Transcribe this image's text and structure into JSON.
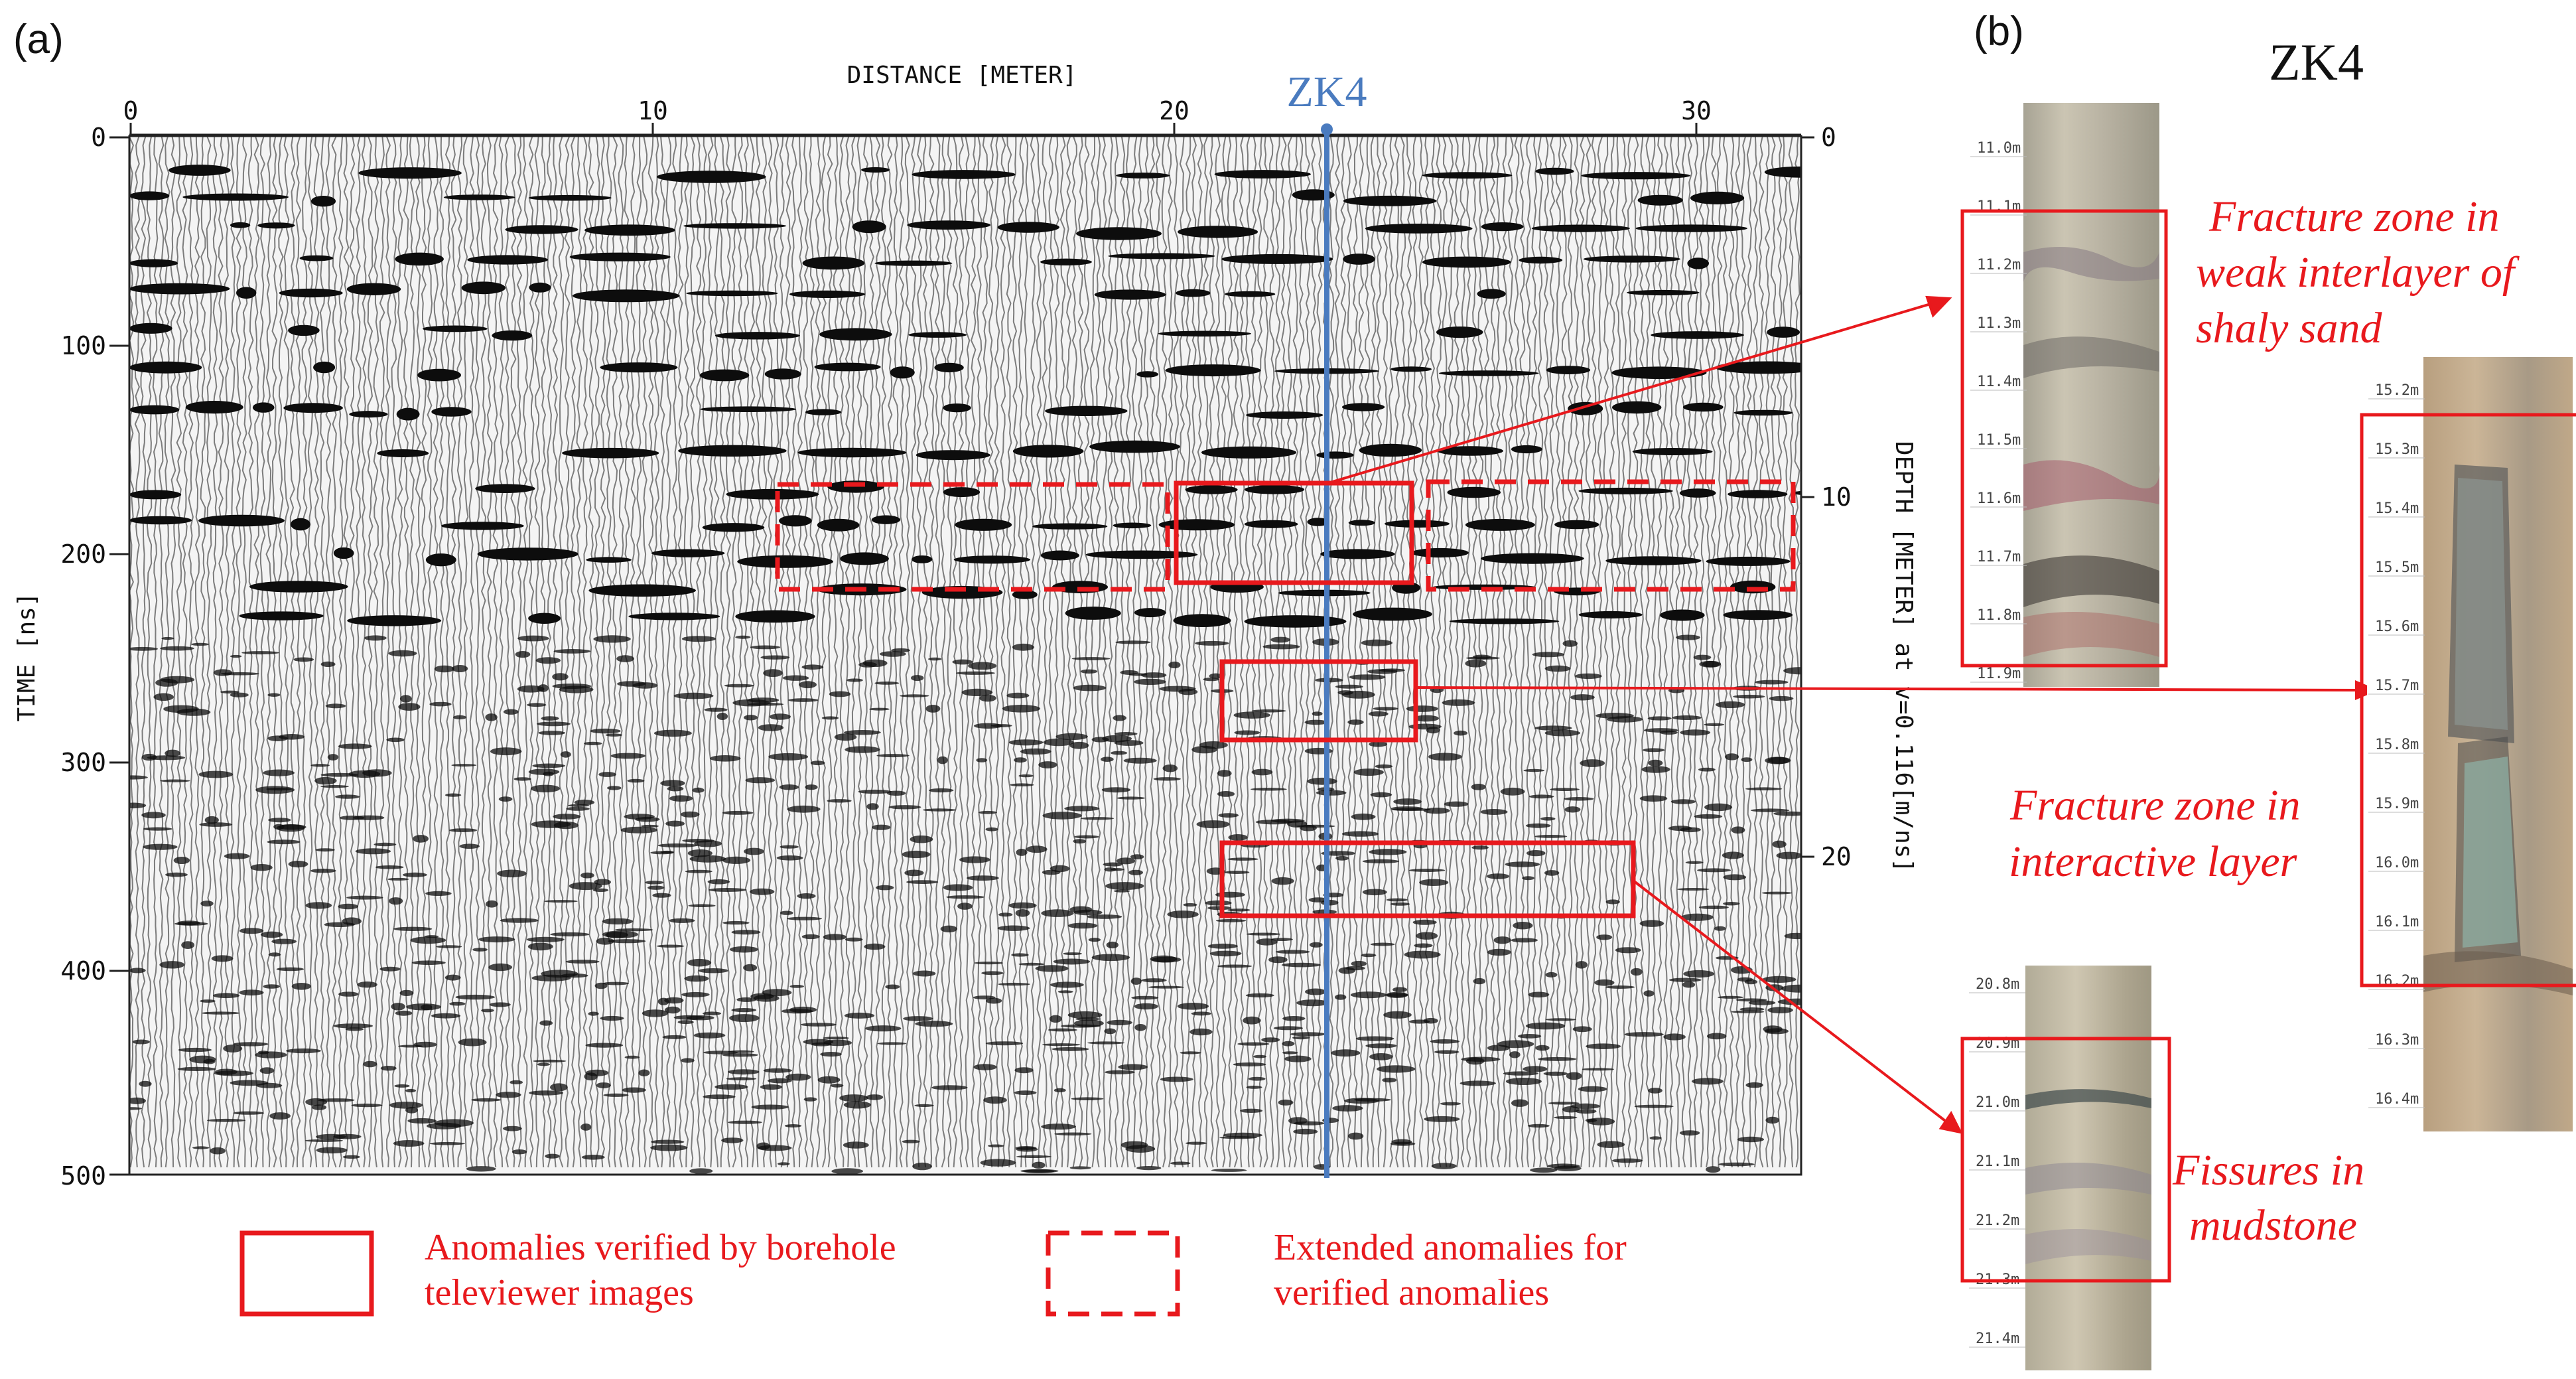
{
  "panel_a": {
    "label": "(a)",
    "x_axis": {
      "title": "DISTANCE [METER]",
      "ticks": [
        "0",
        "10",
        "20",
        "30"
      ],
      "range": [
        0,
        32
      ]
    },
    "y_axis": {
      "title": "TIME [ns]",
      "ticks": [
        "0",
        "100",
        "200",
        "300",
        "400",
        "500"
      ],
      "range": [
        0,
        500
      ]
    },
    "depth_axis": {
      "title": "DEPTH [METER] at v=0.116[m/ns]",
      "ticks": [
        "0",
        "10",
        "20"
      ],
      "velocity_m_per_ns": 0.116
    },
    "borehole_marker": {
      "label": "ZK4",
      "distance_m": 22.9,
      "color": "#4a7bbf"
    },
    "verified_anomalies": [
      {
        "name": "upper",
        "x_range_m": [
          20.1,
          24.5
        ],
        "time_range_ns": [
          168,
          215
        ]
      },
      {
        "name": "middle",
        "x_range_m": [
          21,
          24.7
        ],
        "time_range_ns": [
          252,
          290
        ]
      },
      {
        "name": "lower",
        "x_range_m": [
          21,
          28.9
        ],
        "time_range_ns": [
          340,
          375
        ]
      }
    ],
    "extended_anomalies": [
      {
        "name": "left",
        "x_range_m": [
          12.5,
          19.9
        ],
        "time_range_ns": [
          167,
          218
        ]
      },
      {
        "name": "right",
        "x_range_m": [
          24.9,
          32
        ],
        "time_range_ns": [
          167,
          218
        ]
      }
    ],
    "legend": {
      "solid_label_line1": "Anomalies verified by borehole",
      "solid_label_line2": "televiewer images",
      "dashed_label_line1": "Extended anomalies for",
      "dashed_label_line2": "verified anomalies"
    }
  },
  "panel_b": {
    "label": "(b)",
    "title": "ZK4",
    "cores": [
      {
        "name": "core-11",
        "depths": [
          "11.0m",
          "11.1m",
          "11.2m",
          "11.3m",
          "11.4m",
          "11.5m",
          "11.6m",
          "11.7m",
          "11.8m",
          "11.9m"
        ]
      },
      {
        "name": "core-15",
        "depths": [
          "15.2m",
          "15.3m",
          "15.4m",
          "15.5m",
          "15.6m",
          "15.7m",
          "15.8m",
          "15.9m",
          "16.0m",
          "16.1m",
          "16.2m",
          "16.3m",
          "16.4m"
        ]
      },
      {
        "name": "core-21",
        "depths": [
          "20.8m",
          "20.9m",
          "21.0m",
          "21.1m",
          "21.2m",
          "21.3m",
          "21.4m"
        ]
      }
    ],
    "annotations": {
      "a1_line1": "Fracture zone in",
      "a1_line2": "weak interlayer of",
      "a1_line3": "shaly sand",
      "a2_line1": "Fracture zone in",
      "a2_line2": "interactive layer",
      "a3_line1": "Fissures in",
      "a3_line2": "mudstone"
    }
  },
  "colors": {
    "anomaly": "#e8191d",
    "borehole": "#4a7bbf",
    "text": "#111111"
  }
}
